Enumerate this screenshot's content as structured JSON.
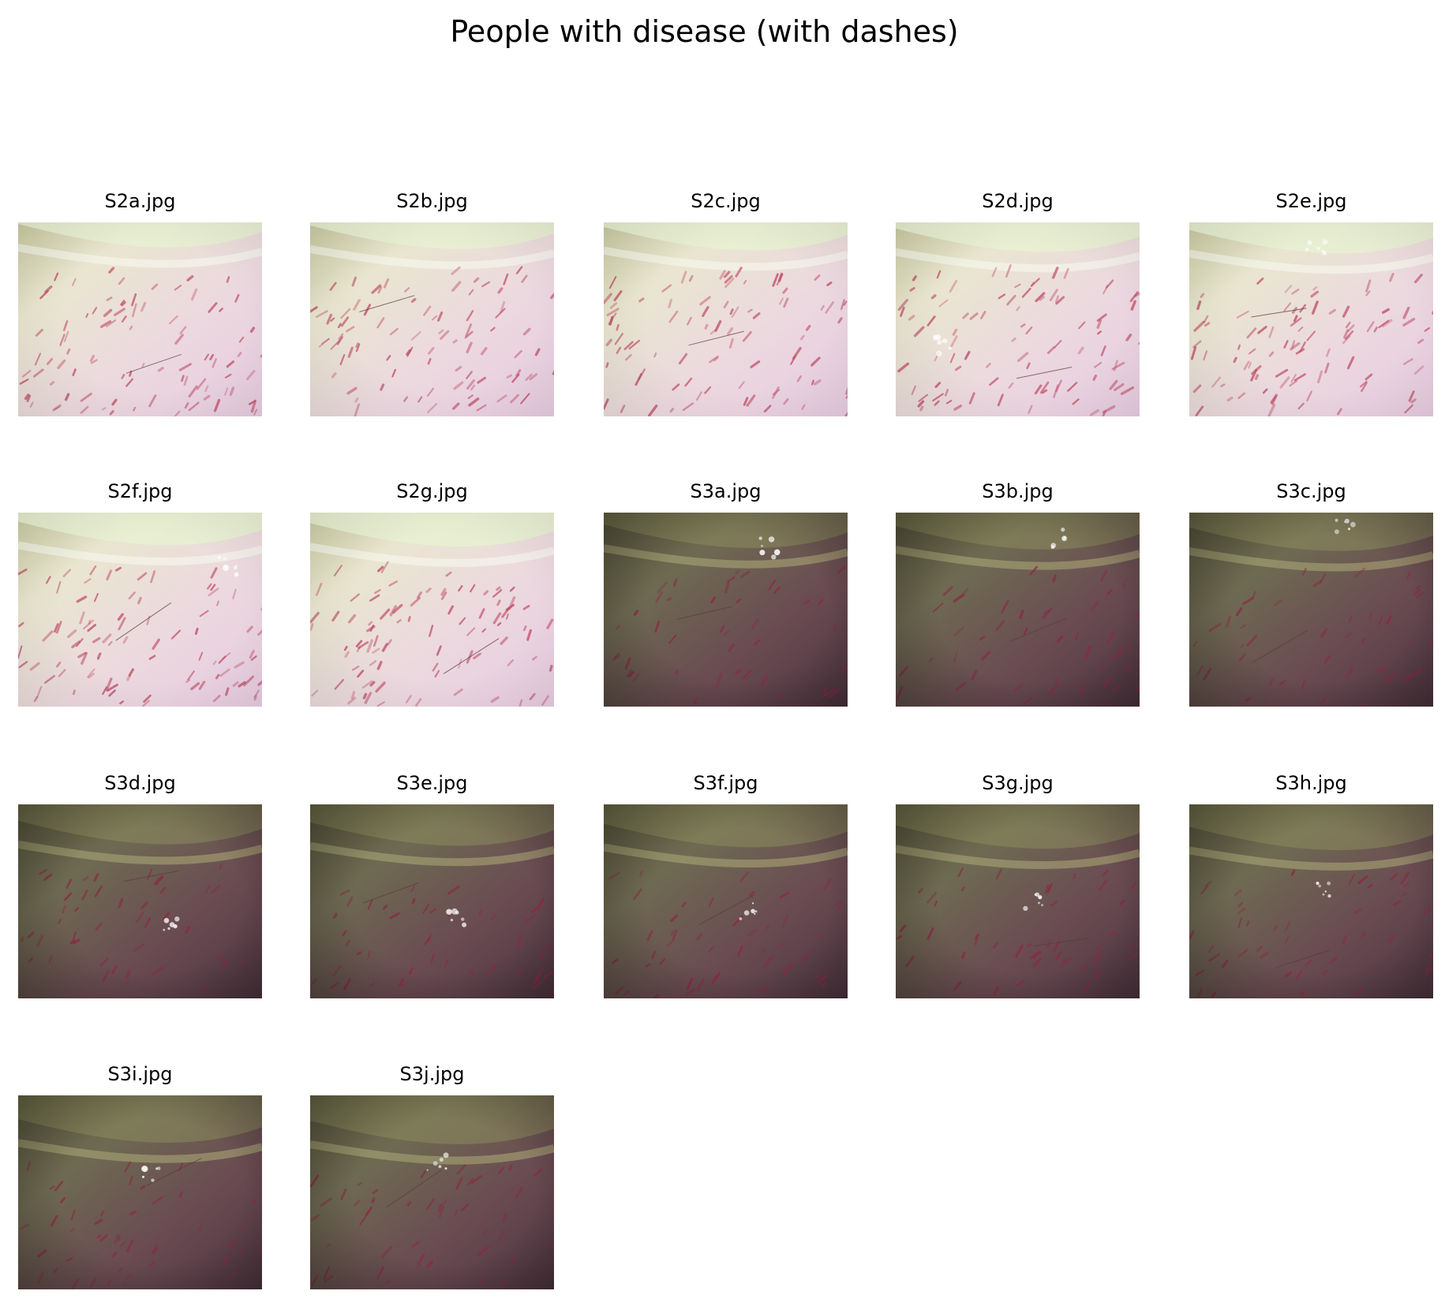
{
  "title": "People with disease (with dashes)",
  "images": [
    {
      "label": "S2a.jpg",
      "tone": "light"
    },
    {
      "label": "S2b.jpg",
      "tone": "light"
    },
    {
      "label": "S2c.jpg",
      "tone": "light"
    },
    {
      "label": "S2d.jpg",
      "tone": "light"
    },
    {
      "label": "S2e.jpg",
      "tone": "light"
    },
    {
      "label": "S2f.jpg",
      "tone": "light"
    },
    {
      "label": "S2g.jpg",
      "tone": "light"
    },
    {
      "label": "S3a.jpg",
      "tone": "dark"
    },
    {
      "label": "S3b.jpg",
      "tone": "dark"
    },
    {
      "label": "S3c.jpg",
      "tone": "dark"
    },
    {
      "label": "S3d.jpg",
      "tone": "dark"
    },
    {
      "label": "S3e.jpg",
      "tone": "dark"
    },
    {
      "label": "S3f.jpg",
      "tone": "dark"
    },
    {
      "label": "S3g.jpg",
      "tone": "dark"
    },
    {
      "label": "S3h.jpg",
      "tone": "dark"
    },
    {
      "label": "S3i.jpg",
      "tone": "dark"
    },
    {
      "label": "S3j.jpg",
      "tone": "dark"
    }
  ]
}
